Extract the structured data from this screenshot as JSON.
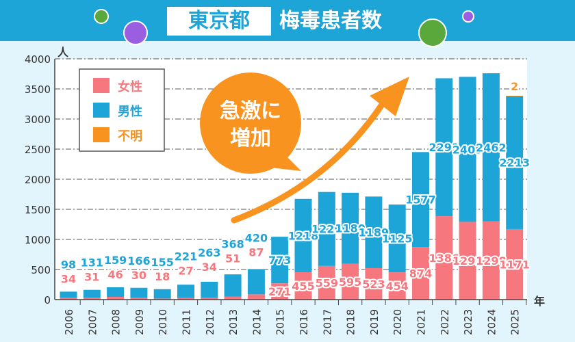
{
  "header": {
    "title_region": "東京都",
    "title_main": "梅毒患者数"
  },
  "colors": {
    "female": "#f7777f",
    "male": "#1ea5d8",
    "unknown": "#f7931e",
    "header": "#1ea5d8"
  },
  "callout": {
    "line1": "急激に",
    "line2": "増加"
  },
  "chart_data": {
    "type": "bar",
    "stacked": true,
    "title": "梅毒患者数",
    "ylabel": "人",
    "xlabel": "年",
    "ylim": [
      0,
      4000
    ],
    "yticks": [
      0,
      500,
      1000,
      1500,
      2000,
      2500,
      3000,
      3500,
      4000
    ],
    "grid": true,
    "legend_position": "top-left",
    "categories": [
      "2006",
      "2007",
      "2008",
      "2009",
      "2010",
      "2011",
      "2012",
      "2013",
      "2014",
      "2015",
      "2016",
      "2017",
      "2018",
      "2019",
      "2020",
      "2021",
      "2022",
      "2023",
      "2024",
      "2025"
    ],
    "series": [
      {
        "name": "女性",
        "values": [
          34,
          31,
          46,
          30,
          18,
          27,
          34,
          51,
          87,
          271,
          455,
          559,
          595,
          523,
          454,
          874,
          1386,
          1292,
          1298,
          1171
        ]
      },
      {
        "name": "男性",
        "values": [
          98,
          131,
          159,
          166,
          155,
          221,
          263,
          368,
          420,
          773,
          1218,
          1229,
          1180,
          1189,
          1125,
          1577,
          2291,
          2409,
          2462,
          2213
        ]
      },
      {
        "name": "不明",
        "values": [
          0,
          0,
          0,
          0,
          0,
          0,
          0,
          0,
          0,
          0,
          0,
          0,
          0,
          0,
          0,
          0,
          0,
          0,
          0,
          2
        ]
      }
    ]
  }
}
